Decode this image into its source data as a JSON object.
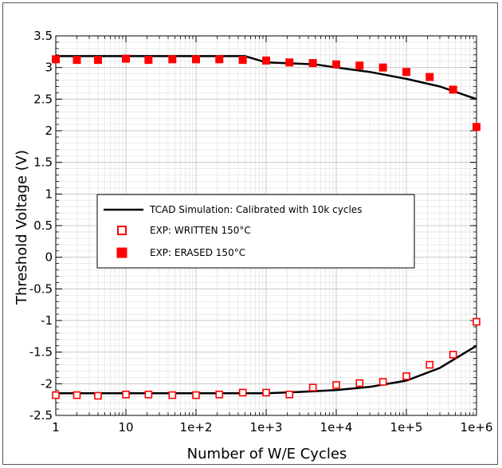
{
  "chart_data": {
    "type": "scatter",
    "title": "",
    "xlabel": "Number of W/E Cycles",
    "ylabel": "Threshold Voltage (V)",
    "x_scale": "log",
    "xlim": [
      1,
      1000000
    ],
    "ylim": [
      -2.5,
      3.5
    ],
    "grid": true,
    "legend_position": "center-left",
    "x_ticks": [
      "1",
      "10",
      "1e+2",
      "1e+3",
      "1e+4",
      "1e+5",
      "1e+6"
    ],
    "y_ticks": [
      "3.5",
      "3",
      "2.5",
      "2",
      "1.5",
      "1",
      "0.5",
      "0",
      "-0.5",
      "-1",
      "-1.5",
      "-2",
      "-2.5"
    ],
    "series": [
      {
        "name": "TCAD Simulation: Calibrated with 10k cycles",
        "kind": "line",
        "color": "#000000",
        "x": [
          1,
          500,
          1000,
          5000,
          10000,
          30000,
          100000,
          300000,
          1000000
        ],
        "y": [
          3.18,
          3.18,
          3.08,
          3.05,
          3.0,
          2.93,
          2.82,
          2.7,
          2.5
        ]
      },
      {
        "name": "",
        "kind": "line",
        "color": "#000000",
        "x": [
          1,
          1000,
          3000,
          10000,
          30000,
          100000,
          300000,
          1000000
        ],
        "y": [
          -2.15,
          -2.15,
          -2.13,
          -2.1,
          -2.05,
          -1.95,
          -1.75,
          -1.4
        ]
      },
      {
        "name": "EXP: WRITTEN 150°C",
        "kind": "open-square",
        "color": "#ff0000",
        "x": [
          1,
          2,
          4,
          10,
          21,
          46,
          100,
          215,
          464,
          1000,
          2150,
          4640,
          10000,
          21500,
          46400,
          100000,
          215000,
          464000,
          1000000
        ],
        "y": [
          -2.18,
          -2.18,
          -2.19,
          -2.17,
          -2.17,
          -2.18,
          -2.18,
          -2.17,
          -2.14,
          -2.14,
          -2.17,
          -2.06,
          -2.02,
          -1.99,
          -1.97,
          -1.88,
          -1.7,
          -1.54,
          -1.02
        ]
      },
      {
        "name": "EXP: ERASED 150°C",
        "kind": "filled-square",
        "color": "#ff0000",
        "x": [
          1,
          2,
          4,
          10,
          21,
          46,
          100,
          215,
          464,
          1000,
          2150,
          4640,
          10000,
          21500,
          46400,
          100000,
          215000,
          464000,
          1000000
        ],
        "y": [
          3.13,
          3.12,
          3.12,
          3.14,
          3.12,
          3.13,
          3.13,
          3.13,
          3.12,
          3.11,
          3.08,
          3.07,
          3.05,
          3.03,
          3.0,
          2.93,
          2.85,
          2.65,
          2.06
        ]
      }
    ]
  }
}
